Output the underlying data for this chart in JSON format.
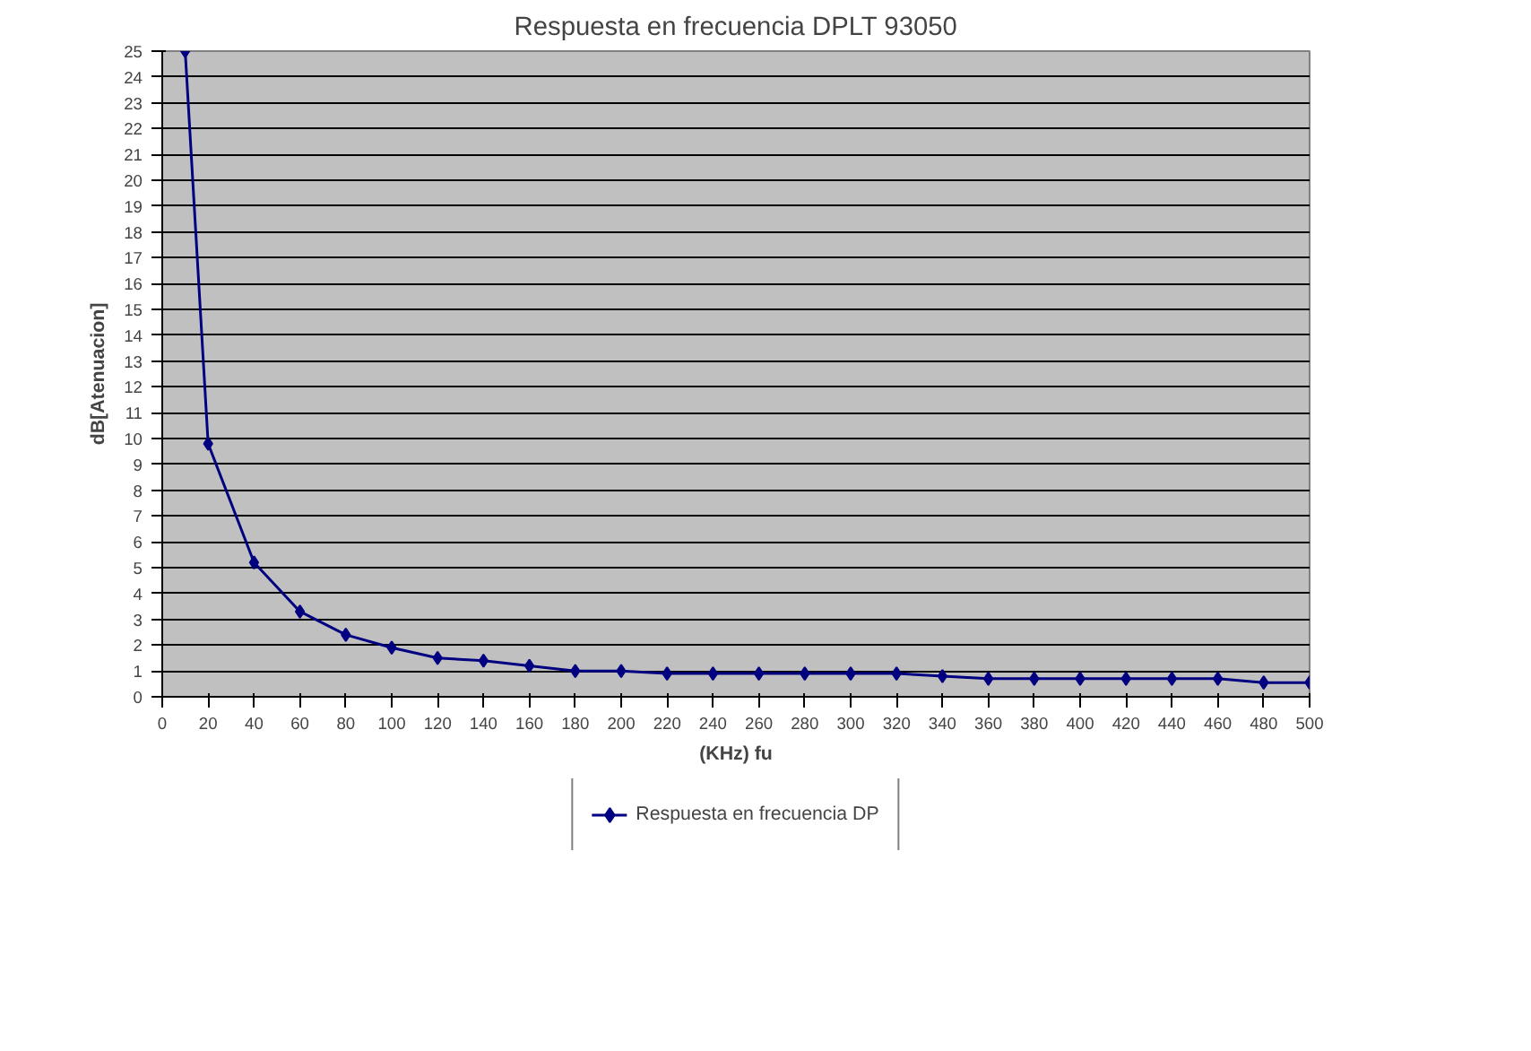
{
  "chart_data": {
    "type": "line",
    "title": "Respuesta en frecuencia DPLT 93050",
    "xlabel": "(KHz) fu",
    "ylabel": "dB[Atenuacion]",
    "x": [
      10,
      20,
      40,
      60,
      80,
      100,
      120,
      140,
      160,
      180,
      200,
      220,
      240,
      260,
      280,
      300,
      320,
      340,
      360,
      380,
      400,
      420,
      440,
      460,
      480,
      500
    ],
    "series": [
      {
        "name": "Respuesta en frecuencia DP",
        "color": "#000080",
        "values": [
          25,
          9.8,
          5.2,
          3.3,
          2.4,
          1.9,
          1.5,
          1.4,
          1.2,
          1.0,
          1.0,
          0.9,
          0.9,
          0.9,
          0.9,
          0.9,
          0.9,
          0.8,
          0.7,
          0.7,
          0.7,
          0.7,
          0.7,
          0.7,
          0.55,
          0.55
        ]
      }
    ],
    "xlim": [
      0,
      500
    ],
    "xticks": [
      0,
      20,
      40,
      60,
      80,
      100,
      120,
      140,
      160,
      180,
      200,
      220,
      240,
      260,
      280,
      300,
      320,
      340,
      360,
      380,
      400,
      420,
      440,
      460,
      480,
      500
    ],
    "ylim": [
      0,
      25
    ],
    "yticks": [
      0,
      1,
      2,
      3,
      4,
      5,
      6,
      7,
      8,
      9,
      10,
      11,
      12,
      13,
      14,
      15,
      16,
      17,
      18,
      19,
      20,
      21,
      22,
      23,
      24,
      25
    ],
    "grid": "y",
    "legend": "bottom",
    "marker": "diamond",
    "line_style": "solid"
  }
}
